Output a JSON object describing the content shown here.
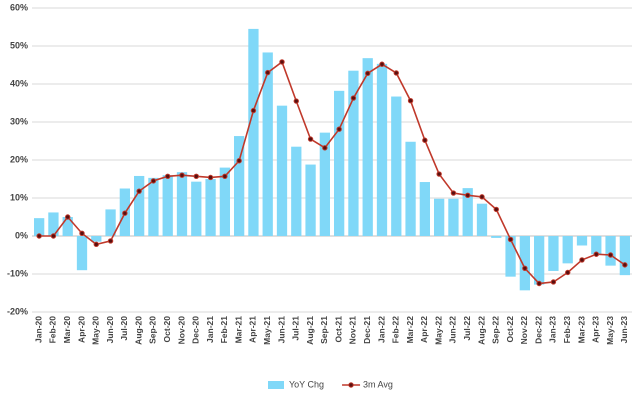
{
  "chart_data": {
    "type": "bar-line",
    "categories": [
      "Jan-20",
      "Feb-20",
      "Mar-20",
      "Apr-20",
      "May-20",
      "Jun-20",
      "Jul-20",
      "Aug-20",
      "Sep-20",
      "Oct-20",
      "Nov-20",
      "Dec-20",
      "Jan-21",
      "Feb-21",
      "Mar-21",
      "Apr-21",
      "May-21",
      "Jun-21",
      "Jul-21",
      "Aug-21",
      "Sep-21",
      "Oct-21",
      "Nov-21",
      "Dec-21",
      "Jan-22",
      "Feb-22",
      "Mar-22",
      "Apr-22",
      "May-22",
      "Jun-22",
      "Jul-22",
      "Aug-22",
      "Sep-22",
      "Oct-22",
      "Nov-22",
      "Dec-22",
      "Jan-23",
      "Feb-23",
      "Mar-23",
      "Apr-23",
      "May-23",
      "Jun-23"
    ],
    "series": [
      {
        "name": "YoY Chg",
        "type": "bar",
        "color": "#80d8f8",
        "values": [
          4.7,
          6.2,
          5,
          -9,
          -1.5,
          7,
          12.5,
          15.8,
          15.3,
          16,
          16.8,
          14.3,
          15,
          18,
          26.3,
          54.5,
          48.3,
          34.3,
          23.5,
          18.8,
          27.2,
          38.2,
          43.5,
          46.8,
          45.3,
          36.7,
          24.8,
          14.2,
          9.8,
          9.8,
          12.6,
          8.5,
          -0.5,
          -10.7,
          -14.3,
          -12.8,
          -9.2,
          -7.2,
          -2.5,
          -4.8,
          -7.8,
          -10.3
        ]
      },
      {
        "name": "3m Avg",
        "type": "line",
        "color": "#c0392b",
        "values": [
          0,
          0,
          5,
          0.7,
          -2.2,
          -1.3,
          6,
          11.8,
          14.5,
          15.7,
          16,
          15.7,
          15.4,
          15.7,
          19.8,
          33,
          43,
          45.8,
          35.5,
          25.5,
          23.2,
          28.1,
          36.3,
          42.8,
          45.2,
          42.9,
          35.6,
          25.2,
          16.3,
          11.3,
          10.7,
          10.3,
          7,
          -0.9,
          -8.5,
          -12.5,
          -12.1,
          -9.6,
          -6.3,
          -4.8,
          -5,
          -7.6
        ]
      }
    ],
    "ylim": [
      -20,
      60
    ],
    "yticks": [
      {
        "value": -20,
        "label": "-20%"
      },
      {
        "value": -10,
        "label": "-10%"
      },
      {
        "value": 0,
        "label": "0%"
      },
      {
        "value": 10,
        "label": "10%"
      },
      {
        "value": 20,
        "label": "20%"
      },
      {
        "value": 30,
        "label": "30%"
      },
      {
        "value": 40,
        "label": "40%"
      },
      {
        "value": 50,
        "label": "50%"
      },
      {
        "value": 60,
        "label": "60%"
      }
    ],
    "grid": true,
    "legend": "bottom"
  }
}
